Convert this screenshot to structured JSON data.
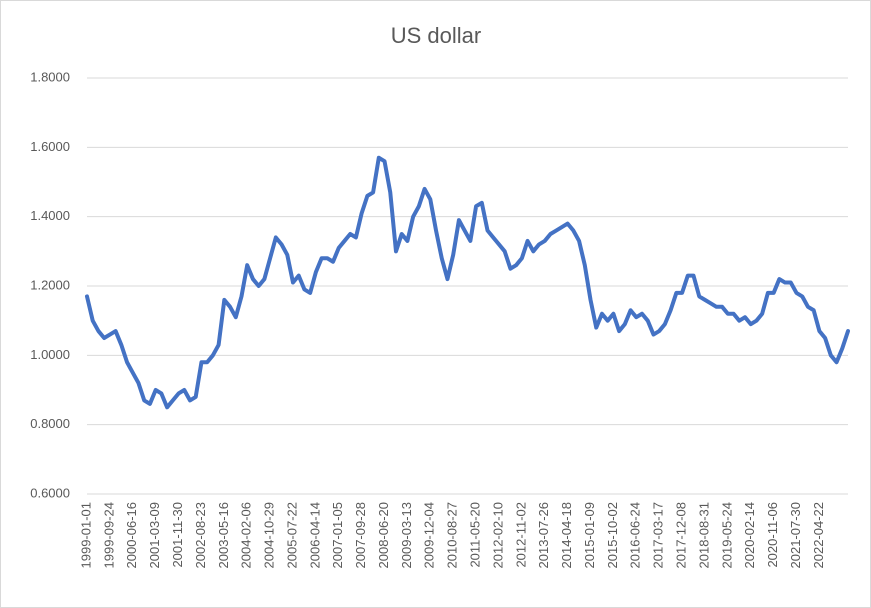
{
  "chart_data": {
    "type": "line",
    "title": "US dollar",
    "categories": [
      "1999-01-01",
      null,
      null,
      null,
      "1999-09-24",
      null,
      null,
      null,
      "2000-06-16",
      null,
      null,
      null,
      "2001-03-09",
      null,
      null,
      null,
      "2001-11-30",
      null,
      null,
      null,
      "2002-08-23",
      null,
      null,
      null,
      "2003-05-16",
      null,
      null,
      null,
      "2004-02-06",
      null,
      null,
      null,
      "2004-10-29",
      null,
      null,
      null,
      "2005-07-22",
      null,
      null,
      null,
      "2006-04-14",
      null,
      null,
      null,
      "2007-01-05",
      null,
      null,
      null,
      "2007-09-28",
      null,
      null,
      null,
      "2008-06-20",
      null,
      null,
      null,
      "2009-03-13",
      null,
      null,
      null,
      "2009-12-04",
      null,
      null,
      null,
      "2010-08-27",
      null,
      null,
      null,
      "2011-05-20",
      null,
      null,
      null,
      "2012-02-10",
      null,
      null,
      null,
      "2012-11-02",
      null,
      null,
      null,
      "2013-07-26",
      null,
      null,
      null,
      "2014-04-18",
      null,
      null,
      null,
      "2015-01-09",
      null,
      null,
      null,
      "2015-10-02",
      null,
      null,
      null,
      "2016-06-24",
      null,
      null,
      null,
      "2017-03-17",
      null,
      null,
      null,
      "2017-12-08",
      null,
      null,
      null,
      "2018-08-31",
      null,
      null,
      null,
      "2019-05-24",
      null,
      null,
      null,
      "2020-02-14",
      null,
      null,
      null,
      "2020-11-06",
      null,
      null,
      null,
      "2021-07-30",
      null,
      null,
      null,
      "2022-04-22",
      null,
      null,
      null,
      null,
      null
    ],
    "series": [
      {
        "name": "US dollar",
        "color": "#4472c4",
        "values": [
          1.17,
          1.1,
          1.07,
          1.05,
          1.06,
          1.07,
          1.03,
          0.98,
          0.95,
          0.92,
          0.87,
          0.86,
          0.9,
          0.89,
          0.85,
          0.87,
          0.89,
          0.9,
          0.87,
          0.88,
          0.98,
          0.98,
          1.0,
          1.03,
          1.16,
          1.14,
          1.11,
          1.17,
          1.26,
          1.22,
          1.2,
          1.22,
          1.28,
          1.34,
          1.32,
          1.29,
          1.21,
          1.23,
          1.19,
          1.18,
          1.24,
          1.28,
          1.28,
          1.27,
          1.31,
          1.33,
          1.35,
          1.34,
          1.41,
          1.46,
          1.47,
          1.57,
          1.56,
          1.47,
          1.3,
          1.35,
          1.33,
          1.4,
          1.43,
          1.48,
          1.45,
          1.36,
          1.28,
          1.22,
          1.29,
          1.39,
          1.36,
          1.33,
          1.43,
          1.44,
          1.36,
          1.34,
          1.32,
          1.3,
          1.25,
          1.26,
          1.28,
          1.33,
          1.3,
          1.32,
          1.33,
          1.35,
          1.36,
          1.37,
          1.38,
          1.36,
          1.33,
          1.26,
          1.16,
          1.08,
          1.12,
          1.1,
          1.12,
          1.07,
          1.09,
          1.13,
          1.11,
          1.12,
          1.1,
          1.06,
          1.07,
          1.09,
          1.13,
          1.18,
          1.18,
          1.23,
          1.23,
          1.17,
          1.16,
          1.15,
          1.14,
          1.14,
          1.12,
          1.12,
          1.1,
          1.11,
          1.09,
          1.1,
          1.12,
          1.18,
          1.18,
          1.22,
          1.21,
          1.21,
          1.18,
          1.17,
          1.14,
          1.13,
          1.07,
          1.05,
          1.0,
          0.98,
          1.02,
          1.07
        ]
      }
    ],
    "ylim": [
      0.6,
      1.8
    ],
    "yticks": [
      {
        "value": 0.6,
        "label": "0.6000"
      },
      {
        "value": 0.8,
        "label": "0.8000"
      },
      {
        "value": 1.0,
        "label": "1.0000"
      },
      {
        "value": 1.2,
        "label": "1.2000"
      },
      {
        "value": 1.4,
        "label": "1.4000"
      },
      {
        "value": 1.6,
        "label": "1.6000"
      },
      {
        "value": 1.8,
        "label": "1.8000"
      }
    ],
    "grid": true
  }
}
